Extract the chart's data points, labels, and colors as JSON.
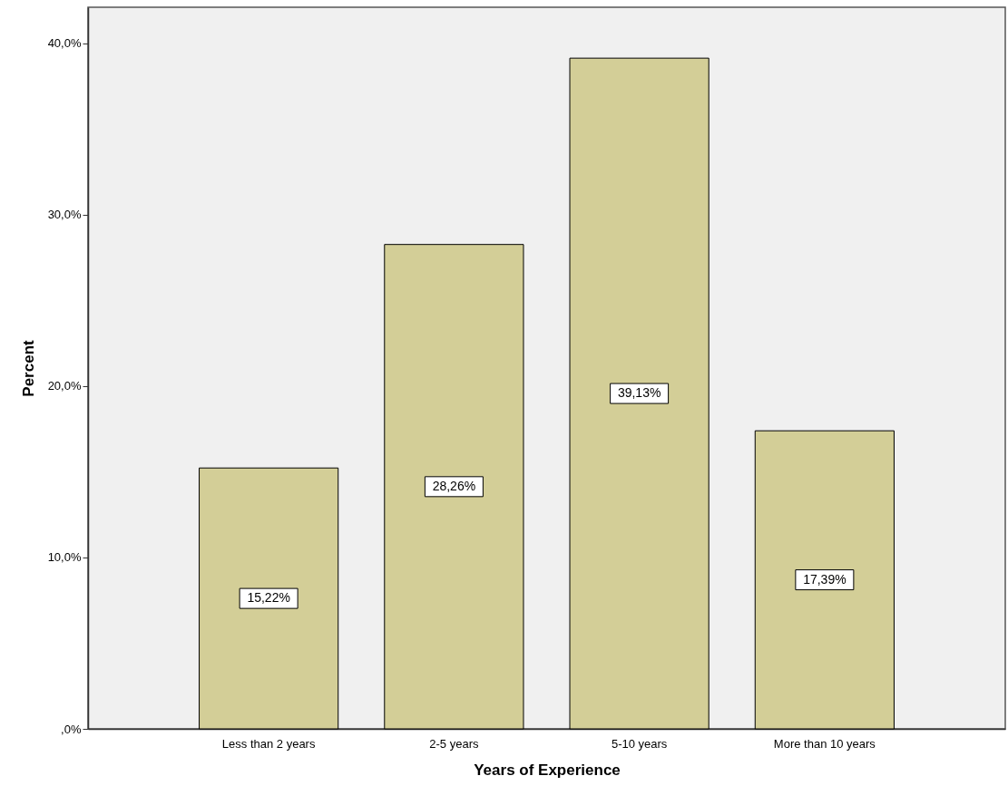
{
  "chart_data": {
    "type": "bar",
    "xlabel": "Years of Experience",
    "ylabel": "Percent",
    "categories": [
      "Less than 2 years",
      "2-5 years",
      "5-10 years",
      "More than 10 years"
    ],
    "values": [
      15.22,
      28.26,
      39.13,
      17.39
    ],
    "value_labels": [
      "15,22%",
      "28,26%",
      "39,13%",
      "17,39%"
    ],
    "color": "#d3ce97",
    "ylim": [
      0,
      42.1
    ],
    "yticks": [
      {
        "value": 0,
        "label": ",0%"
      },
      {
        "value": 10,
        "label": "10,0%"
      },
      {
        "value": 20,
        "label": "20,0%"
      },
      {
        "value": 30,
        "label": "30,0%"
      },
      {
        "value": 40,
        "label": "40,0%"
      }
    ],
    "grid": false
  }
}
